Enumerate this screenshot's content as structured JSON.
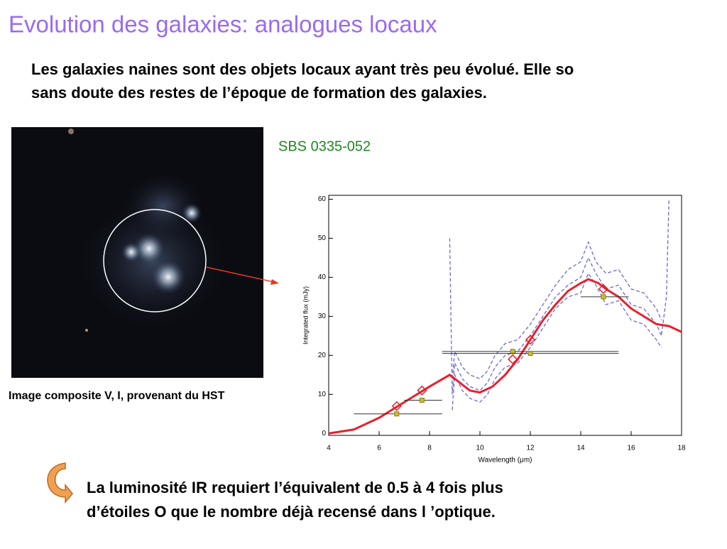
{
  "title": "Evolution des galaxies: analogues locaux",
  "intro": [
    "Les galaxies naines sont des objets locaux ayant très peu évolué. Elle so",
    "sans doute des restes de l’époque de formation des galaxies."
  ],
  "image_caption": "Image composite V, I, provenant du HST",
  "object_name": "SBS 0335-052",
  "conclusion": [
    "La luminosité IR requiert l’équivalent de 0.5 à 4 fois plus",
    "d’étoiles O que le nombre déjà recensé dans l ’optique."
  ],
  "chart": {
    "type": "line",
    "xlabel": "Wavelength (μm)",
    "ylabel": "Integrated flux (mJy)",
    "xlim": [
      4,
      18
    ],
    "ylim": [
      -0.5,
      61
    ],
    "xticks": [
      4,
      6,
      8,
      10,
      12,
      14,
      16,
      18
    ],
    "yticks": [
      0,
      10,
      20,
      30,
      40,
      50,
      60
    ],
    "series": [
      {
        "color": "#e8202a",
        "dashed": false,
        "x": [
          4,
          5,
          6,
          7,
          8,
          8.8,
          9.2,
          9.6,
          10,
          10.5,
          11,
          11.5,
          12,
          12.5,
          13,
          13.5,
          14,
          14.3,
          14.7,
          15,
          15.5,
          16,
          16.5,
          17,
          17.5,
          18
        ],
        "y": [
          0,
          1,
          4,
          8,
          12,
          15,
          13,
          11,
          10.5,
          12,
          15,
          19,
          24,
          29,
          33,
          36.5,
          38.5,
          39.5,
          38.5,
          37,
          35,
          32,
          30,
          28,
          27.5,
          26
        ]
      },
      {
        "color": "#6a6ad8",
        "dashed": true,
        "x": [
          8.8,
          8.9,
          9,
          9.3,
          9.6,
          10,
          10.3,
          10.6,
          11,
          11.5,
          12,
          12.5,
          13,
          13.5,
          14,
          14.3,
          14.6,
          15,
          15.5,
          16,
          16.5,
          17,
          17.2,
          17.4,
          17.5
        ],
        "y": [
          50,
          10,
          18,
          14,
          12,
          11,
          13,
          17,
          20,
          21,
          25,
          30,
          35,
          38,
          40,
          45,
          41,
          37,
          38,
          33,
          32,
          28,
          25,
          35,
          60
        ]
      },
      {
        "color": "#6a6ad8",
        "dashed": true,
        "x": [
          8.9,
          9,
          9.3,
          9.6,
          10,
          10.3,
          10.6,
          11,
          11.5,
          12,
          12.5,
          13,
          13.5,
          14,
          14.3,
          14.6,
          15,
          15.5,
          16,
          16.5,
          17,
          17.2
        ],
        "y": [
          14,
          21,
          17,
          15,
          14,
          16,
          20,
          23,
          24,
          28,
          33,
          38,
          42,
          44,
          49,
          44,
          41,
          42,
          37,
          36,
          32,
          29
        ]
      },
      {
        "color": "#6a6ad8",
        "dashed": true,
        "x": [
          8.9,
          9,
          9.3,
          9.6,
          10,
          10.3,
          10.6,
          11,
          11.5,
          12,
          12.5,
          13,
          13.5,
          14,
          14.3,
          14.6,
          15,
          15.5,
          16,
          16.5,
          17,
          17.2
        ],
        "y": [
          6,
          15,
          11,
          9,
          8,
          10,
          14,
          17,
          18,
          22,
          27,
          32,
          35,
          36,
          41,
          38,
          33,
          34,
          29,
          28,
          24,
          22
        ]
      }
    ],
    "points": {
      "color": "#c8c020",
      "x": [
        6.7,
        7.7,
        11.3,
        12,
        14.9
      ],
      "y": [
        5,
        8.5,
        21,
        20.5,
        35
      ],
      "xerr_low": [
        5,
        7,
        8.5,
        8.5,
        14
      ],
      "xerr_high": [
        8.5,
        8.5,
        15.5,
        15.5,
        15.9
      ]
    },
    "diamonds": {
      "color": "#e8202a",
      "x": [
        6.7,
        7.7,
        11.3,
        12,
        14.9
      ],
      "y": [
        7,
        11,
        19,
        24,
        37
      ]
    }
  }
}
